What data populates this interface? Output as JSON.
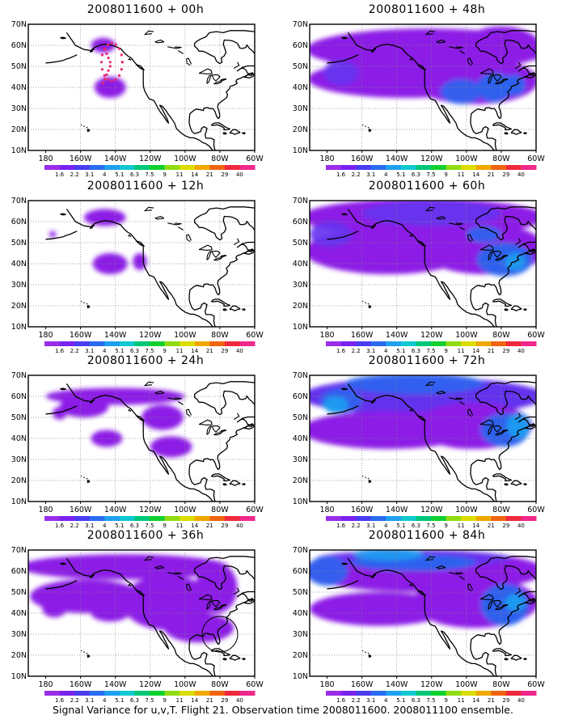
{
  "map": {
    "lon_labels": [
      "180",
      "160W",
      "140W",
      "120W",
      "100W",
      "80W",
      "60W"
    ],
    "lat_labels": [
      "10N",
      "20N",
      "30N",
      "40N",
      "50N",
      "60N",
      "70N"
    ],
    "colorbar": {
      "labels": [
        "1.6",
        "2.2",
        "3.1",
        "4",
        "5.1",
        "6.3",
        "7.5",
        "9",
        "11",
        "14",
        "21",
        "29",
        "40"
      ],
      "colors": [
        "#9a2ee8",
        "#7a22f0",
        "#4a3cf0",
        "#2a6cf0",
        "#20a0f0",
        "#10c8d0",
        "#00c878",
        "#10d030",
        "#90dc10",
        "#dcdc00",
        "#f0a800",
        "#f06410",
        "#f0283c",
        "#f0288c"
      ]
    },
    "shade_colors": {
      "purple": "#8c1ee6",
      "indigo": "#6432ee",
      "blue": "#2a64ee",
      "cyan": "#1ea0f0"
    },
    "panels": [
      {
        "title": "2008011600 + 00h"
      },
      {
        "title": "2008011600 + 48h"
      },
      {
        "title": "2008011600 + 12h"
      },
      {
        "title": "2008011600 + 60h"
      },
      {
        "title": "2008011600 + 24h"
      },
      {
        "title": "2008011600 + 72h"
      },
      {
        "title": "2008011600 + 36h"
      },
      {
        "title": "2008011600 + 84h"
      }
    ]
  },
  "caption": "Signal Variance for u,v,T. Flight 21. Observation time 2008011600. 2008011100 ensemble."
}
